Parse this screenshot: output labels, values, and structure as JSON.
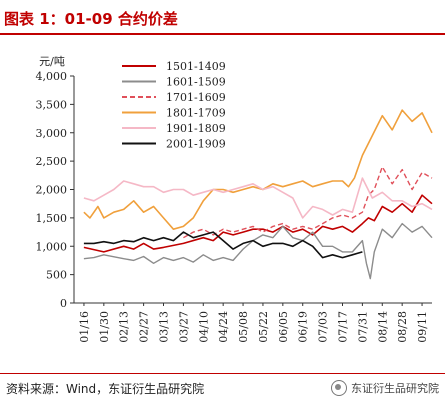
{
  "header": {
    "title": "图表 1：01-09 合约价差"
  },
  "footer": {
    "source": "资料来源：Wind，东证衍生品研究院",
    "watermark": "东证衍生品研究院"
  },
  "chart_data": {
    "type": "line",
    "title": "图表 1：01-09 合约价差",
    "ylabel": "元/吨",
    "xlabel": "",
    "ylim": [
      0,
      4000
    ],
    "yticks": [
      0,
      500,
      1000,
      1500,
      2000,
      2500,
      3000,
      3500,
      4000
    ],
    "ytick_labels": [
      "0",
      "500",
      "1,000",
      "1,500",
      "2,000",
      "2,500",
      "3,000",
      "3,500",
      "4,000"
    ],
    "categories": [
      "01/16",
      "01/30",
      "02/13",
      "02/27",
      "03/13",
      "03/27",
      "04/10",
      "04/24",
      "05/08",
      "05/22",
      "06/05",
      "06/19",
      "07/03",
      "07/17",
      "07/31",
      "08/14",
      "08/28",
      "09/11"
    ],
    "grid": false,
    "legend_position": "top-center",
    "series": [
      {
        "name": "1501-1409",
        "color": "#c00000",
        "dash": "solid",
        "width": 1.6,
        "x": [
          0,
          1,
          2,
          2.5,
          3,
          3.5,
          4,
          5,
          6,
          6.5,
          7,
          7.5,
          8,
          8.5,
          9,
          9.5,
          10,
          10.5,
          11,
          11.5,
          12,
          12.5,
          13,
          13.5,
          14,
          14.3,
          14.6,
          15,
          15.5,
          16,
          16.5,
          17,
          17.5
        ],
        "values": [
          980,
          900,
          1000,
          950,
          1050,
          950,
          980,
          1050,
          1150,
          1100,
          1250,
          1200,
          1250,
          1300,
          1300,
          1250,
          1350,
          1250,
          1300,
          1200,
          1350,
          1300,
          1350,
          1250,
          1400,
          1500,
          1450,
          1700,
          1600,
          1750,
          1600,
          1900,
          1750
        ]
      },
      {
        "name": "1601-1509",
        "color": "#8c8c8c",
        "dash": "solid",
        "width": 1.4,
        "x": [
          0,
          0.5,
          1,
          2,
          2.5,
          3,
          3.5,
          4,
          4.5,
          5,
          5.5,
          6,
          6.5,
          7,
          7.5,
          8,
          8.5,
          9,
          9.5,
          10,
          10.5,
          11,
          11.5,
          12,
          12.5,
          13,
          13.5,
          14,
          14.2,
          14.4,
          14.6,
          15,
          15.5,
          16,
          16.5,
          17,
          17.5
        ],
        "values": [
          780,
          800,
          850,
          780,
          750,
          820,
          700,
          800,
          750,
          800,
          720,
          850,
          750,
          800,
          750,
          950,
          1100,
          1200,
          1150,
          1350,
          1150,
          1100,
          1250,
          1000,
          1000,
          900,
          900,
          1100,
          700,
          430,
          900,
          1300,
          1150,
          1400,
          1250,
          1350,
          1150
        ]
      },
      {
        "name": "1701-1609",
        "color": "#e0505a",
        "dash": "dashed",
        "width": 1.4,
        "x": [
          5,
          5.5,
          6,
          6.5,
          7,
          7.5,
          8,
          8.5,
          9,
          9.5,
          10,
          10.5,
          11,
          11.5,
          12,
          12.5,
          13,
          13.5,
          14,
          14.3,
          14.6,
          15,
          15.5,
          16,
          16.5,
          17,
          17.5
        ],
        "values": [
          1150,
          1250,
          1300,
          1200,
          1300,
          1250,
          1300,
          1350,
          1250,
          1350,
          1400,
          1300,
          1350,
          1300,
          1400,
          1500,
          1550,
          1500,
          1600,
          1900,
          2000,
          2400,
          2100,
          2350,
          2000,
          2300,
          2200
        ]
      },
      {
        "name": "1801-1709",
        "color": "#f0a03c",
        "dash": "solid",
        "width": 1.6,
        "x": [
          0,
          0.3,
          0.7,
          1,
          1.5,
          2,
          2.5,
          3,
          3.5,
          4,
          4.5,
          5,
          5.5,
          6,
          6.5,
          7,
          7.5,
          8,
          8.5,
          9,
          9.5,
          10,
          10.5,
          11,
          11.5,
          12,
          12.5,
          13,
          13.3,
          13.6,
          14,
          14.5,
          15,
          15.5,
          16,
          16.5,
          17,
          17.5
        ],
        "values": [
          1600,
          1500,
          1700,
          1500,
          1600,
          1650,
          1800,
          1600,
          1700,
          1500,
          1300,
          1350,
          1500,
          1800,
          2000,
          2000,
          1950,
          2000,
          2050,
          2000,
          2100,
          2050,
          2100,
          2150,
          2050,
          2100,
          2150,
          2150,
          2050,
          2200,
          2600,
          2950,
          3300,
          3050,
          3400,
          3200,
          3350,
          3000
        ]
      },
      {
        "name": "1901-1809",
        "color": "#f5b8c6",
        "dash": "solid",
        "width": 1.6,
        "x": [
          0,
          0.5,
          1,
          1.5,
          2,
          2.5,
          3,
          3.5,
          4,
          4.5,
          5,
          5.5,
          6,
          6.5,
          7,
          7.5,
          8,
          8.5,
          9,
          9.5,
          10,
          10.5,
          11,
          11.5,
          12,
          12.5,
          13,
          13.5,
          14,
          14.5,
          15,
          15.5,
          16,
          16.5,
          17,
          17.5
        ],
        "values": [
          1850,
          1800,
          1900,
          2000,
          2150,
          2100,
          2050,
          2050,
          1950,
          2000,
          2000,
          1900,
          1950,
          2000,
          1950,
          2000,
          2050,
          2100,
          2000,
          2050,
          1950,
          1850,
          1500,
          1700,
          1650,
          1550,
          1650,
          1600,
          2200,
          1850,
          1950,
          1800,
          1800,
          1700,
          1750,
          1650
        ]
      },
      {
        "name": "2001-1909",
        "color": "#111111",
        "dash": "solid",
        "width": 1.6,
        "x": [
          0,
          0.5,
          1,
          1.5,
          2,
          2.5,
          3,
          3.5,
          4,
          4.5,
          5,
          5.5,
          6,
          6.5,
          7,
          7.5,
          8,
          8.5,
          9,
          9.5,
          10,
          10.5,
          11,
          11.5,
          12,
          12.5,
          13,
          13.5,
          14
        ],
        "values": [
          1050,
          1050,
          1080,
          1050,
          1100,
          1080,
          1150,
          1100,
          1150,
          1100,
          1250,
          1150,
          1200,
          1250,
          1100,
          950,
          1050,
          1100,
          1000,
          1050,
          1050,
          1000,
          1100,
          1000,
          800,
          850,
          800,
          850,
          900
        ]
      }
    ]
  }
}
